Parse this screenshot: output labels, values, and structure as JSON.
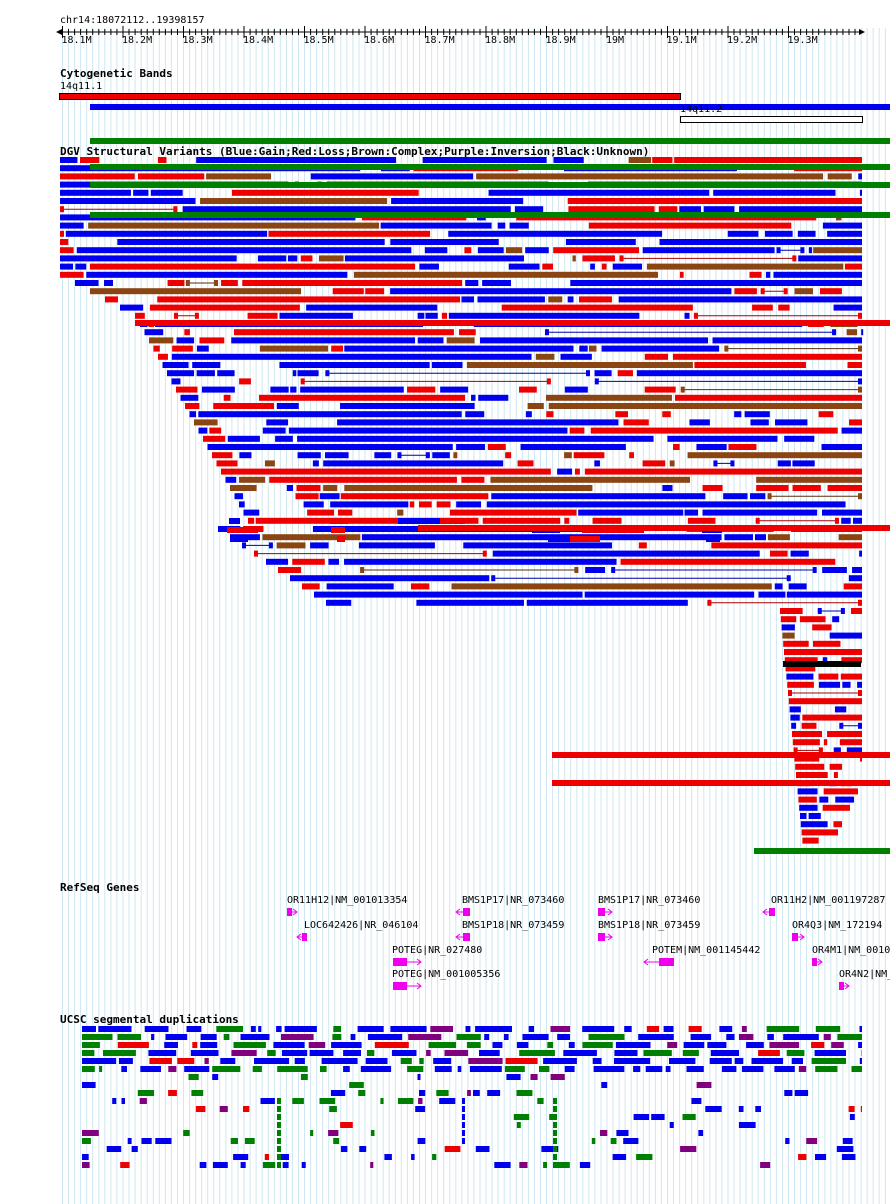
{
  "locus": "chr14:18072112..19398157",
  "ruler": {
    "ticks": [
      "18.1M",
      "18.2M",
      "18.3M",
      "18.4M",
      "18.5M",
      "18.6M",
      "18.7M",
      "18.8M",
      "18.9M",
      "19M",
      "19.1M",
      "19.2M",
      "19.3M"
    ]
  },
  "tracks": {
    "cytoband": {
      "title": "Cytogenetic Bands",
      "bands": [
        {
          "name": "14q11.1",
          "color": "#ee0000"
        },
        {
          "name": "14q11.2",
          "color": "#ffffff"
        }
      ]
    },
    "dgv": {
      "title": "DGV Structural Variants (Blue:Gain;Red:Loss;Brown:Complex;Purple:Inversion;Black:Unknown)",
      "colors": {
        "gain": "#0000ee",
        "loss": "#ee0000",
        "complex": "#8b4513",
        "inversion": "#800080",
        "unknown": "#000000"
      }
    },
    "refseq": {
      "title": "RefSeq Genes",
      "gene_color": "#ee00ee",
      "genes": [
        {
          "label": "OR11H12|NM_001013354",
          "strand": "+"
        },
        {
          "label": "LOC642426|NR_046104",
          "strand": "-"
        },
        {
          "label": "POTEG|NR_027480",
          "strand": "+"
        },
        {
          "label": "POTEG|NM_001005356",
          "strand": "+"
        },
        {
          "label": "BMS1P17|NR_073460",
          "strand": "-"
        },
        {
          "label": "BMS1P18|NR_073459",
          "strand": "-"
        },
        {
          "label": "BMS1P17|NR_073460",
          "strand": "+"
        },
        {
          "label": "BMS1P18|NR_073459",
          "strand": "+"
        },
        {
          "label": "POTEM|NM_001145442",
          "strand": "-"
        },
        {
          "label": "OR11H2|NM_001197287",
          "strand": "-"
        },
        {
          "label": "OR4Q3|NM_172194",
          "strand": "+"
        },
        {
          "label": "OR4M1|NM_0010",
          "strand": "+"
        },
        {
          "label": "OR4N2|NM_",
          "strand": "+"
        }
      ]
    },
    "segdup": {
      "title": "UCSC segmental duplications",
      "colors": {
        "high": "#ee0000",
        "mid": "#0000ee",
        "low": "#008000",
        "inv": "#800080"
      }
    }
  }
}
